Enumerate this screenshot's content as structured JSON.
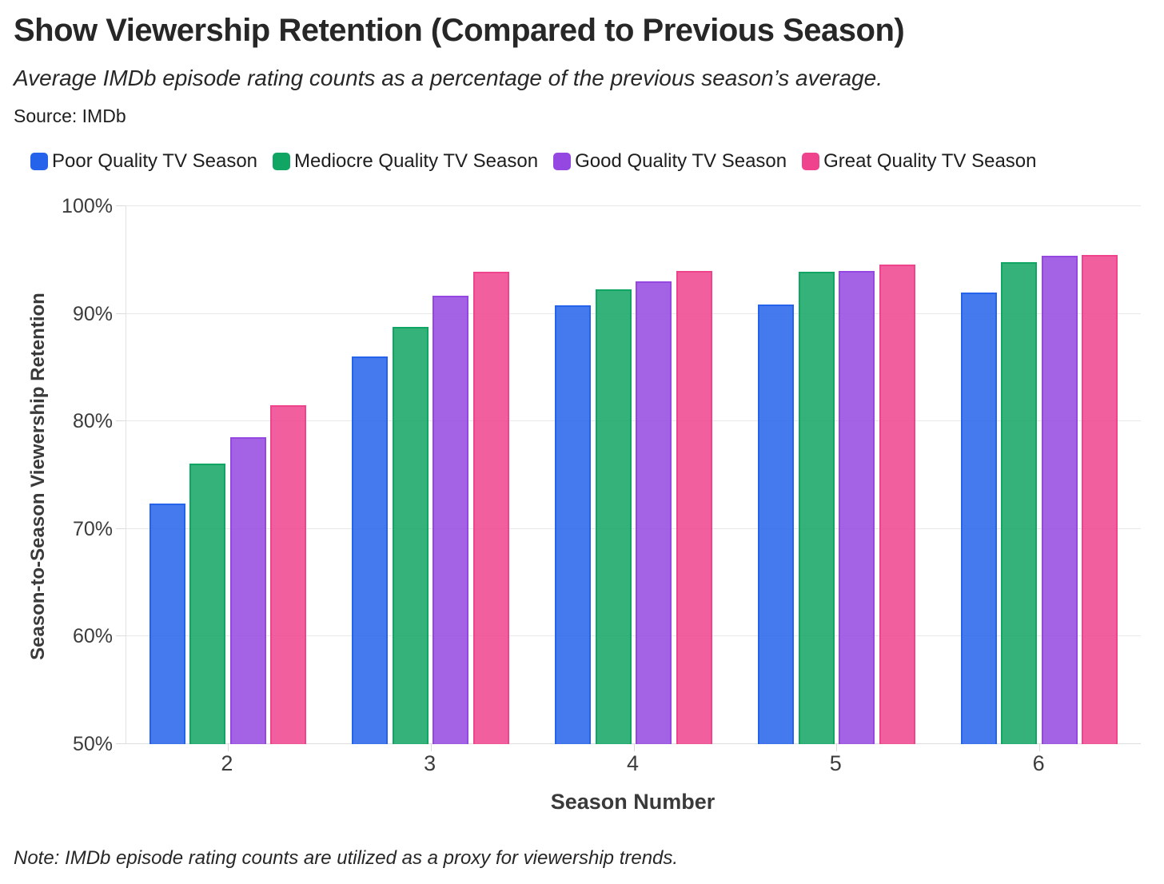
{
  "header": {
    "title": "Show Viewership Retention (Compared to Previous Season)",
    "subtitle": "Average IMDb episode rating counts as a percentage of the previous season’s average.",
    "source": "Source: IMDb"
  },
  "footer": {
    "note": "Note: IMDb episode rating counts are utilized as a proxy for viewership trends."
  },
  "chart_data": {
    "type": "bar",
    "title": "Show Viewership Retention (Compared to Previous Season)",
    "categories": [
      "2",
      "3",
      "4",
      "5",
      "6"
    ],
    "series": [
      {
        "name": "Poor Quality TV Season",
        "color": "#2563eb",
        "values": [
          72.4,
          86.0,
          90.8,
          90.9,
          92.0
        ]
      },
      {
        "name": "Mediocre Quality TV Season",
        "color": "#10a562",
        "values": [
          76.1,
          88.8,
          92.3,
          93.9,
          94.8
        ]
      },
      {
        "name": "Good Quality TV Season",
        "color": "#9447e1",
        "values": [
          78.5,
          91.7,
          93.0,
          94.0,
          95.4
        ]
      },
      {
        "name": "Great Quality TV Season",
        "color": "#f0438d",
        "values": [
          81.5,
          93.9,
          94.0,
          94.6,
          95.5
        ]
      }
    ],
    "xlabel": "Season Number",
    "ylabel": "Season-to-Season Viewership Retention",
    "ylim": [
      50,
      100
    ],
    "yticks": [
      50,
      60,
      70,
      80,
      90,
      100
    ],
    "ytick_suffix": "%",
    "grid": true,
    "legend_position": "top"
  }
}
